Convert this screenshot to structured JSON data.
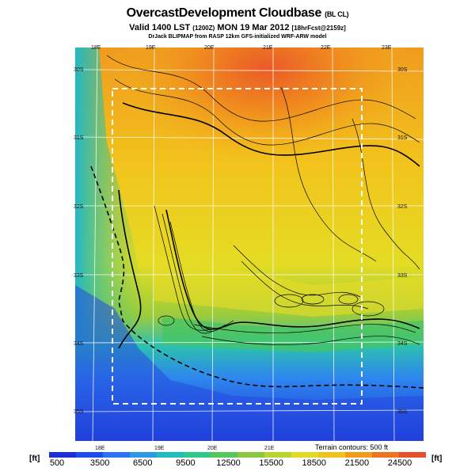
{
  "header": {
    "title": "OvercastDevelopment Cloudbase",
    "title_tag": "(BL CL)",
    "valid_prefix": "Valid 1400 LST",
    "valid_code": "(1200Z)",
    "valid_date": "MON 19 Mar 2012",
    "valid_fcst": "[18hrFcst@2159z]",
    "model_line": "DrJack BLIPMAP from RASP 12km GFS-initialized WRF-ARW model"
  },
  "map": {
    "lon_top": [
      "18E",
      "19E",
      "20E",
      "21E",
      "22E",
      "23E"
    ],
    "lon_bottom": [
      "18E",
      "19E",
      "20E",
      "21E"
    ],
    "lat_left": [
      "30S",
      "31S",
      "32S",
      "33S",
      "34S",
      "35S"
    ],
    "lat_right": [
      "30S",
      "31S",
      "32S",
      "33S",
      "34S",
      "35S"
    ],
    "terrain_note": "Terrain contours: 500 ft"
  },
  "legend": {
    "unit_left": "[ft]",
    "unit_right": "[ft]",
    "labels": [
      "500",
      "3500",
      "6500",
      "9500",
      "12500",
      "15500",
      "18500",
      "21500",
      "24500"
    ],
    "colors": [
      "#1e2fd8",
      "#1f4cf0",
      "#2c72f4",
      "#2e98e8",
      "#21bcc0",
      "#2fc88a",
      "#55c85a",
      "#8cc83e",
      "#bcd22e",
      "#e2da24",
      "#f2c21c",
      "#f29a1a",
      "#ee7420",
      "#e8502a"
    ]
  }
}
